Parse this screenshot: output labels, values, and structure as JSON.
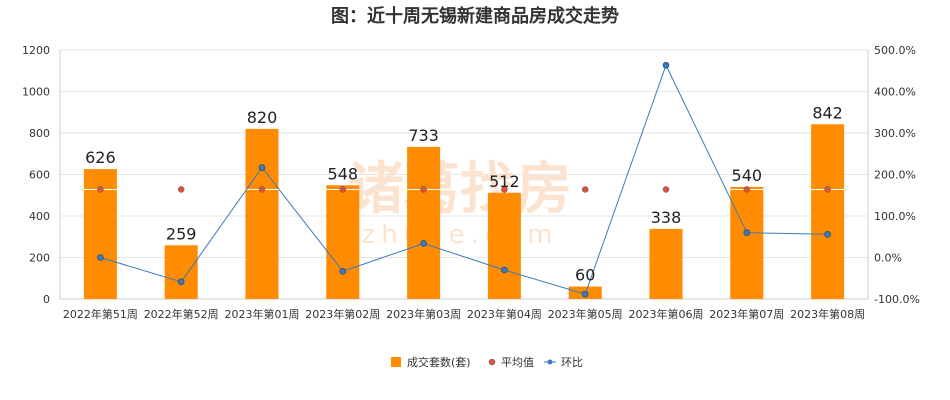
{
  "chart_data": {
    "type": "bar",
    "title": "图：近十周无锡新建商品房成交走势",
    "categories": [
      "2022年第51周",
      "2022年第52周",
      "2023年第01周",
      "2023年第02周",
      "2023年第03周",
      "2023年第04周",
      "2023年第05周",
      "2023年第06周",
      "2023年第07周",
      "2023年第08周"
    ],
    "series": [
      {
        "name": "成交套数(套)",
        "type": "bar",
        "axis": "left",
        "color": "#ff8c00",
        "values": [
          626,
          259,
          820,
          548,
          733,
          512,
          60,
          338,
          540,
          842
        ]
      },
      {
        "name": "平均值",
        "type": "scatter",
        "axis": "left",
        "color": "#e0503c",
        "values": [
          528,
          528,
          528,
          528,
          528,
          528,
          528,
          528,
          528,
          528
        ]
      },
      {
        "name": "环比",
        "type": "line",
        "axis": "right",
        "unit": "%",
        "color": "#3a7bbf",
        "values": [
          0.0,
          -58.6,
          216.6,
          -33.2,
          33.8,
          -30.2,
          -88.3,
          463.3,
          59.8,
          55.9
        ]
      }
    ],
    "left_axis": {
      "ylim": [
        0,
        1200
      ],
      "ticks": [
        "0",
        "200",
        "400",
        "600",
        "800",
        "1000",
        "1200"
      ]
    },
    "right_axis": {
      "ylim": [
        -100,
        500
      ],
      "ticks": [
        "-100.0%",
        "0.0%",
        "100.0%",
        "200.0%",
        "300.0%",
        "400.0%",
        "500.0%"
      ]
    },
    "grid": true,
    "legend_position": "bottom-center",
    "watermark": {
      "text": "诸葛找房",
      "subtext": "zhuge.com"
    }
  }
}
